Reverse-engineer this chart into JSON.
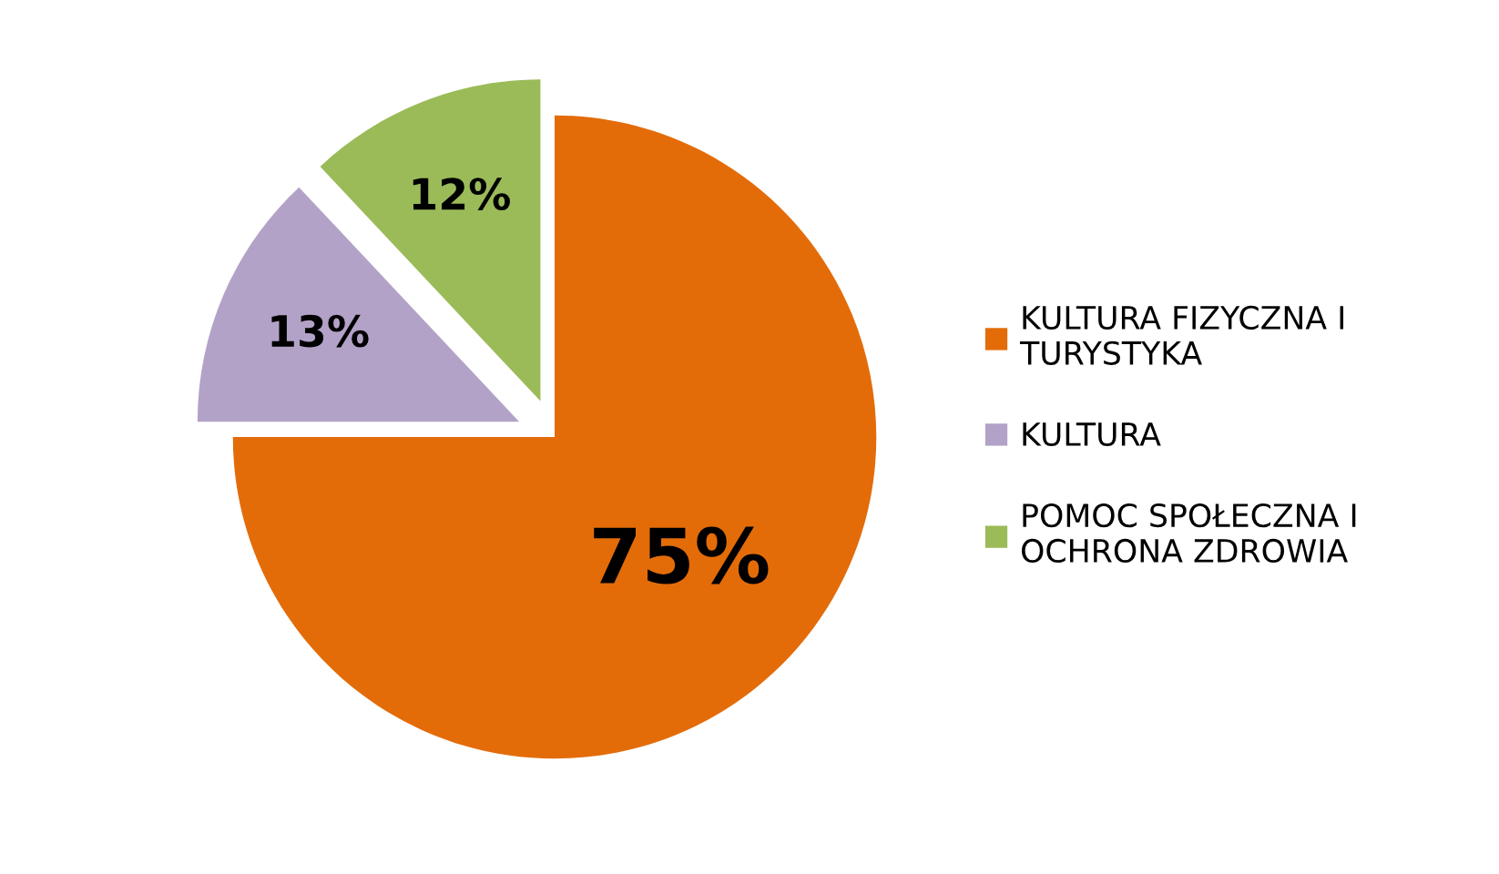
{
  "chart_data": {
    "type": "pie",
    "categories": [
      "KULTURA FIZYCZNA I\nTURYSTYKA",
      "KULTURA",
      "POMOC SPOŁECZNA I\nOCHRONA ZDROWIA"
    ],
    "values": [
      75,
      13,
      12
    ],
    "colors": [
      "#e36c09",
      "#b3a2c7",
      "#9bbb59"
    ],
    "value_labels": [
      "75%",
      "13%",
      "12%"
    ],
    "legend": "right"
  }
}
